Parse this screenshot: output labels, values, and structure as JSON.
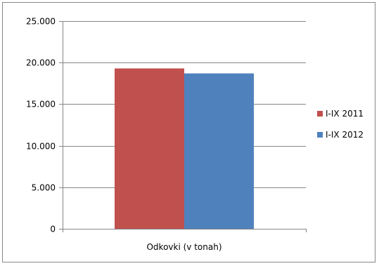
{
  "chart_data": {
    "type": "bar",
    "categories": [
      "Odkovki (v tonah)"
    ],
    "series": [
      {
        "name": "I-IX 2011",
        "values": [
          19300
        ],
        "color": "#c0504d"
      },
      {
        "name": "I-IX 2012",
        "values": [
          18700
        ],
        "color": "#4f81bd"
      }
    ],
    "ylim": [
      0,
      25000
    ],
    "yticks": [
      0,
      5000,
      10000,
      15000,
      20000,
      25000
    ],
    "ytick_labels": [
      "0",
      "5.000",
      "10.000",
      "15.000",
      "20.000",
      "25.000"
    ],
    "grid": true,
    "legend_position": "right",
    "title": "",
    "xlabel": "",
    "ylabel": ""
  }
}
